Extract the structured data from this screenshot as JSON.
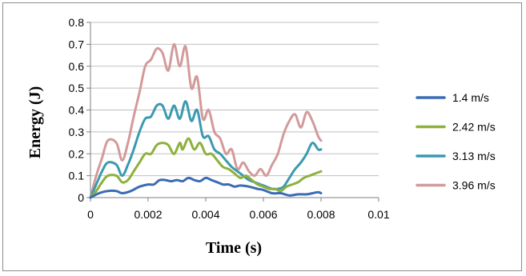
{
  "chart_data": {
    "type": "line",
    "title": "",
    "xlabel": "Time (s)",
    "ylabel": "Energy (J)",
    "xlim": [
      0,
      0.01
    ],
    "ylim": [
      0,
      0.8
    ],
    "xticks": [
      "0",
      "0.002",
      "0.004",
      "0.006",
      "0.008",
      "0.01"
    ],
    "yticks": [
      "0",
      "0.1",
      "0.2",
      "0.3",
      "0.4",
      "0.5",
      "0.6",
      "0.7",
      "0.8"
    ],
    "grid": "horizontal",
    "legend_position": "right",
    "series": [
      {
        "name": "1.4 m/s",
        "color": "#3A6BB5",
        "points": [
          [
            0,
            0.0
          ],
          [
            0.0003,
            0.02
          ],
          [
            0.0006,
            0.03
          ],
          [
            0.0009,
            0.03
          ],
          [
            0.0011,
            0.02
          ],
          [
            0.0014,
            0.03
          ],
          [
            0.0017,
            0.05
          ],
          [
            0.002,
            0.06
          ],
          [
            0.0022,
            0.06
          ],
          [
            0.0024,
            0.08
          ],
          [
            0.0026,
            0.08
          ],
          [
            0.0028,
            0.075
          ],
          [
            0.003,
            0.08
          ],
          [
            0.0032,
            0.075
          ],
          [
            0.0034,
            0.09
          ],
          [
            0.0036,
            0.08
          ],
          [
            0.0038,
            0.075
          ],
          [
            0.004,
            0.09
          ],
          [
            0.0042,
            0.08
          ],
          [
            0.0044,
            0.07
          ],
          [
            0.0046,
            0.06
          ],
          [
            0.0048,
            0.06
          ],
          [
            0.005,
            0.05
          ],
          [
            0.0052,
            0.055
          ],
          [
            0.0055,
            0.05
          ],
          [
            0.0058,
            0.04
          ],
          [
            0.006,
            0.035
          ],
          [
            0.0063,
            0.02
          ],
          [
            0.0066,
            0.02
          ],
          [
            0.0069,
            0.01
          ],
          [
            0.0072,
            0.015
          ],
          [
            0.0075,
            0.015
          ],
          [
            0.0077,
            0.02
          ],
          [
            0.0079,
            0.025
          ],
          [
            0.008,
            0.02
          ]
        ]
      },
      {
        "name": "2.42 m/s",
        "color": "#8DB03D",
        "points": [
          [
            0,
            0.0
          ],
          [
            0.0002,
            0.03
          ],
          [
            0.0004,
            0.07
          ],
          [
            0.0006,
            0.1
          ],
          [
            0.0009,
            0.1
          ],
          [
            0.0011,
            0.07
          ],
          [
            0.0013,
            0.08
          ],
          [
            0.0015,
            0.12
          ],
          [
            0.0017,
            0.16
          ],
          [
            0.0019,
            0.2
          ],
          [
            0.0021,
            0.2
          ],
          [
            0.0023,
            0.24
          ],
          [
            0.0025,
            0.25
          ],
          [
            0.0027,
            0.24
          ],
          [
            0.0029,
            0.2
          ],
          [
            0.0031,
            0.25
          ],
          [
            0.0032,
            0.22
          ],
          [
            0.0034,
            0.27
          ],
          [
            0.0036,
            0.22
          ],
          [
            0.0038,
            0.25
          ],
          [
            0.004,
            0.2
          ],
          [
            0.0042,
            0.2
          ],
          [
            0.0044,
            0.17
          ],
          [
            0.0046,
            0.14
          ],
          [
            0.0048,
            0.13
          ],
          [
            0.005,
            0.11
          ],
          [
            0.0052,
            0.09
          ],
          [
            0.0054,
            0.1
          ],
          [
            0.0056,
            0.08
          ],
          [
            0.0058,
            0.06
          ],
          [
            0.006,
            0.05
          ],
          [
            0.0062,
            0.04
          ],
          [
            0.0064,
            0.04
          ],
          [
            0.0066,
            0.03
          ],
          [
            0.0068,
            0.05
          ],
          [
            0.007,
            0.06
          ],
          [
            0.0072,
            0.07
          ],
          [
            0.0074,
            0.09
          ],
          [
            0.0076,
            0.1
          ],
          [
            0.0078,
            0.11
          ],
          [
            0.008,
            0.12
          ]
        ]
      },
      {
        "name": "3.13 m/s",
        "color": "#3B9AB0",
        "points": [
          [
            0,
            0.0
          ],
          [
            0.0002,
            0.06
          ],
          [
            0.0004,
            0.12
          ],
          [
            0.0006,
            0.16
          ],
          [
            0.0009,
            0.15
          ],
          [
            0.0011,
            0.1
          ],
          [
            0.0013,
            0.15
          ],
          [
            0.0015,
            0.22
          ],
          [
            0.0017,
            0.3
          ],
          [
            0.0019,
            0.36
          ],
          [
            0.0021,
            0.37
          ],
          [
            0.0023,
            0.42
          ],
          [
            0.0025,
            0.42
          ],
          [
            0.0027,
            0.36
          ],
          [
            0.0029,
            0.42
          ],
          [
            0.0031,
            0.36
          ],
          [
            0.0033,
            0.44
          ],
          [
            0.0035,
            0.35
          ],
          [
            0.0037,
            0.4
          ],
          [
            0.0039,
            0.28
          ],
          [
            0.0041,
            0.28
          ],
          [
            0.0043,
            0.22
          ],
          [
            0.0045,
            0.2
          ],
          [
            0.0047,
            0.17
          ],
          [
            0.0049,
            0.14
          ],
          [
            0.0051,
            0.12
          ],
          [
            0.0053,
            0.1
          ],
          [
            0.0055,
            0.08
          ],
          [
            0.0057,
            0.07
          ],
          [
            0.0059,
            0.06
          ],
          [
            0.0061,
            0.05
          ],
          [
            0.0063,
            0.04
          ],
          [
            0.0065,
            0.04
          ],
          [
            0.0067,
            0.05
          ],
          [
            0.0069,
            0.09
          ],
          [
            0.0071,
            0.13
          ],
          [
            0.0073,
            0.16
          ],
          [
            0.0075,
            0.2
          ],
          [
            0.0077,
            0.25
          ],
          [
            0.0079,
            0.22
          ],
          [
            0.008,
            0.22
          ]
        ]
      },
      {
        "name": "3.96 m/s",
        "color": "#D39A9A",
        "points": [
          [
            0,
            0.0
          ],
          [
            0.0002,
            0.1
          ],
          [
            0.0004,
            0.18
          ],
          [
            0.0006,
            0.26
          ],
          [
            0.0009,
            0.25
          ],
          [
            0.0011,
            0.17
          ],
          [
            0.0013,
            0.25
          ],
          [
            0.0015,
            0.37
          ],
          [
            0.0017,
            0.48
          ],
          [
            0.0019,
            0.6
          ],
          [
            0.0021,
            0.63
          ],
          [
            0.0023,
            0.68
          ],
          [
            0.0025,
            0.66
          ],
          [
            0.0027,
            0.58
          ],
          [
            0.0029,
            0.7
          ],
          [
            0.0031,
            0.6
          ],
          [
            0.0033,
            0.69
          ],
          [
            0.0035,
            0.5
          ],
          [
            0.0037,
            0.55
          ],
          [
            0.0039,
            0.36
          ],
          [
            0.0041,
            0.4
          ],
          [
            0.0043,
            0.3
          ],
          [
            0.0045,
            0.27
          ],
          [
            0.0047,
            0.2
          ],
          [
            0.0049,
            0.22
          ],
          [
            0.0051,
            0.13
          ],
          [
            0.0053,
            0.16
          ],
          [
            0.0055,
            0.12
          ],
          [
            0.0057,
            0.1
          ],
          [
            0.0059,
            0.13
          ],
          [
            0.0061,
            0.1
          ],
          [
            0.0063,
            0.15
          ],
          [
            0.0065,
            0.2
          ],
          [
            0.0067,
            0.29
          ],
          [
            0.0069,
            0.35
          ],
          [
            0.0071,
            0.38
          ],
          [
            0.0073,
            0.32
          ],
          [
            0.0075,
            0.39
          ],
          [
            0.0077,
            0.35
          ],
          [
            0.0079,
            0.28
          ],
          [
            0.008,
            0.26
          ]
        ]
      }
    ]
  }
}
